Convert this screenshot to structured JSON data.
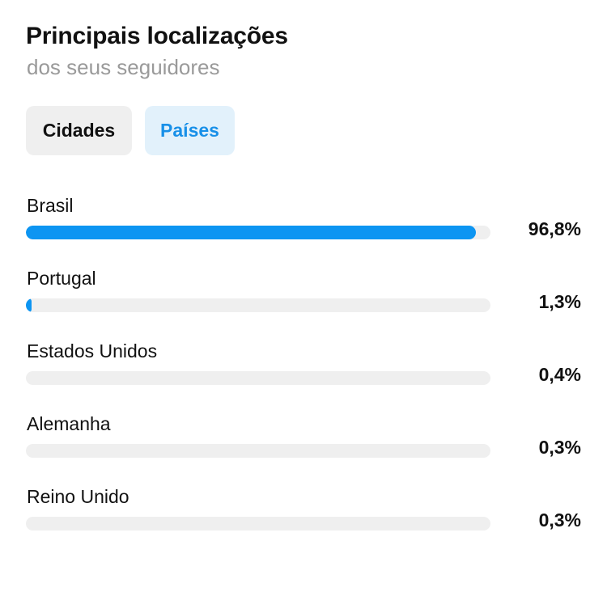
{
  "header": {
    "title": "Principais localizações",
    "subtitle": "dos seus seguidores"
  },
  "tabs": [
    {
      "label": "Cidades",
      "selected": false
    },
    {
      "label": "Países",
      "selected": true
    }
  ],
  "colors": {
    "accent": "#0d95f2",
    "tab_selected_bg": "#e2f1fb",
    "tab_unselected_bg": "#efefef",
    "track": "#efefef"
  },
  "locations": [
    {
      "name": "Brasil",
      "percent_label": "96,8%",
      "fraction": 0.968
    },
    {
      "name": "Portugal",
      "percent_label": "1,3%",
      "fraction": 0.013
    },
    {
      "name": "Estados Unidos",
      "percent_label": "0,4%",
      "fraction": 0.004
    },
    {
      "name": "Alemanha",
      "percent_label": "0,3%",
      "fraction": 0.003
    },
    {
      "name": "Reino Unido",
      "percent_label": "0,3%",
      "fraction": 0.003
    }
  ]
}
